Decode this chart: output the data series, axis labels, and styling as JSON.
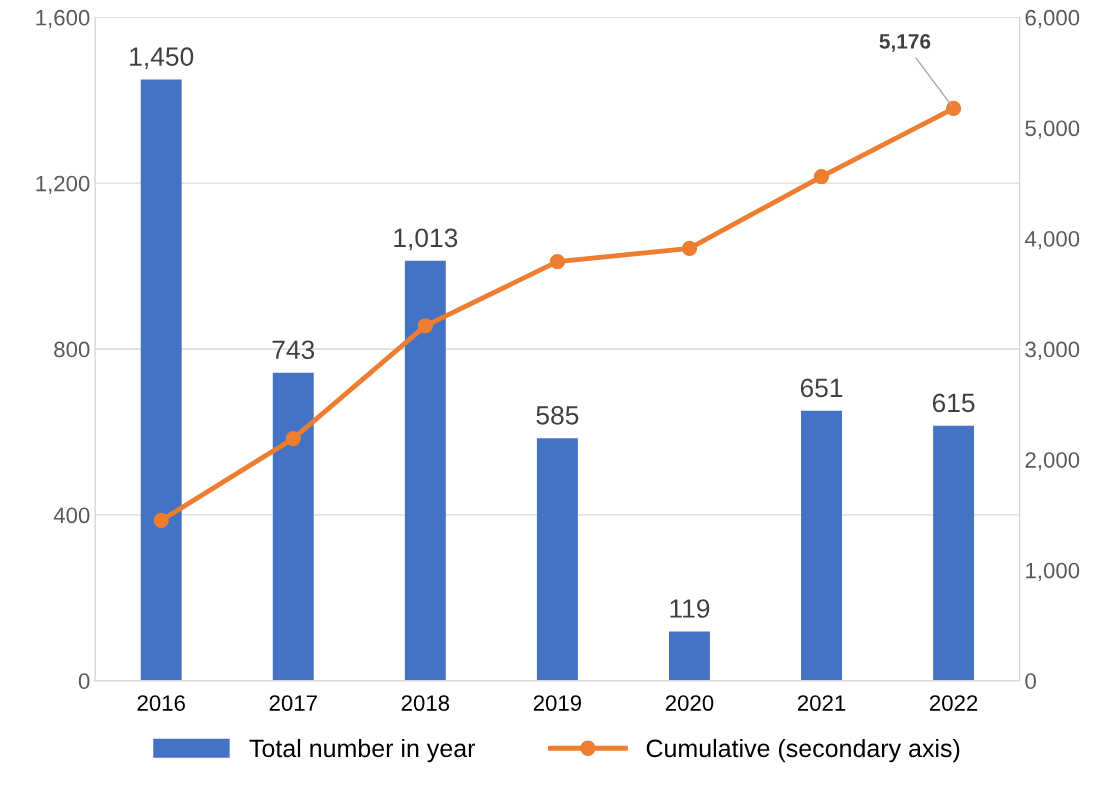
{
  "chart_data": {
    "type": "bar",
    "categories": [
      "2016",
      "2017",
      "2018",
      "2019",
      "2020",
      "2021",
      "2022"
    ],
    "series": [
      {
        "name": "Total number in year",
        "color": "#4472c4",
        "values": [
          1450,
          743,
          1013,
          585,
          119,
          651,
          615
        ],
        "value_labels": [
          "1,450",
          "743",
          "1,013",
          "585",
          "119",
          "651",
          "615"
        ]
      },
      {
        "name": "Cumulative (secondary axis)",
        "type": "line",
        "axis": "y2",
        "color": "#ed7d31",
        "marker": "circle",
        "values": [
          1450,
          2190,
          3210,
          3790,
          3910,
          4560,
          5176
        ],
        "value_labels": [
          null,
          null,
          null,
          null,
          null,
          null,
          "5,176"
        ]
      }
    ],
    "ylim": [
      0,
      1600
    ],
    "yticks": [
      0,
      400,
      800,
      {
        "value": 1200,
        "label": "1,200"
      },
      {
        "value": 1600,
        "label": "1,600"
      }
    ],
    "y2lim": [
      0,
      6000
    ],
    "y2ticks": [
      0,
      {
        "value": 1000,
        "label": "1,000"
      },
      {
        "value": 2000,
        "label": "2,000"
      },
      {
        "value": 3000,
        "label": "3,000"
      },
      {
        "value": 4000,
        "label": "4,000"
      },
      {
        "value": 5000,
        "label": "5,000"
      },
      {
        "value": 6000,
        "label": "6,000"
      }
    ],
    "grid": "y",
    "legend": "bottom"
  }
}
